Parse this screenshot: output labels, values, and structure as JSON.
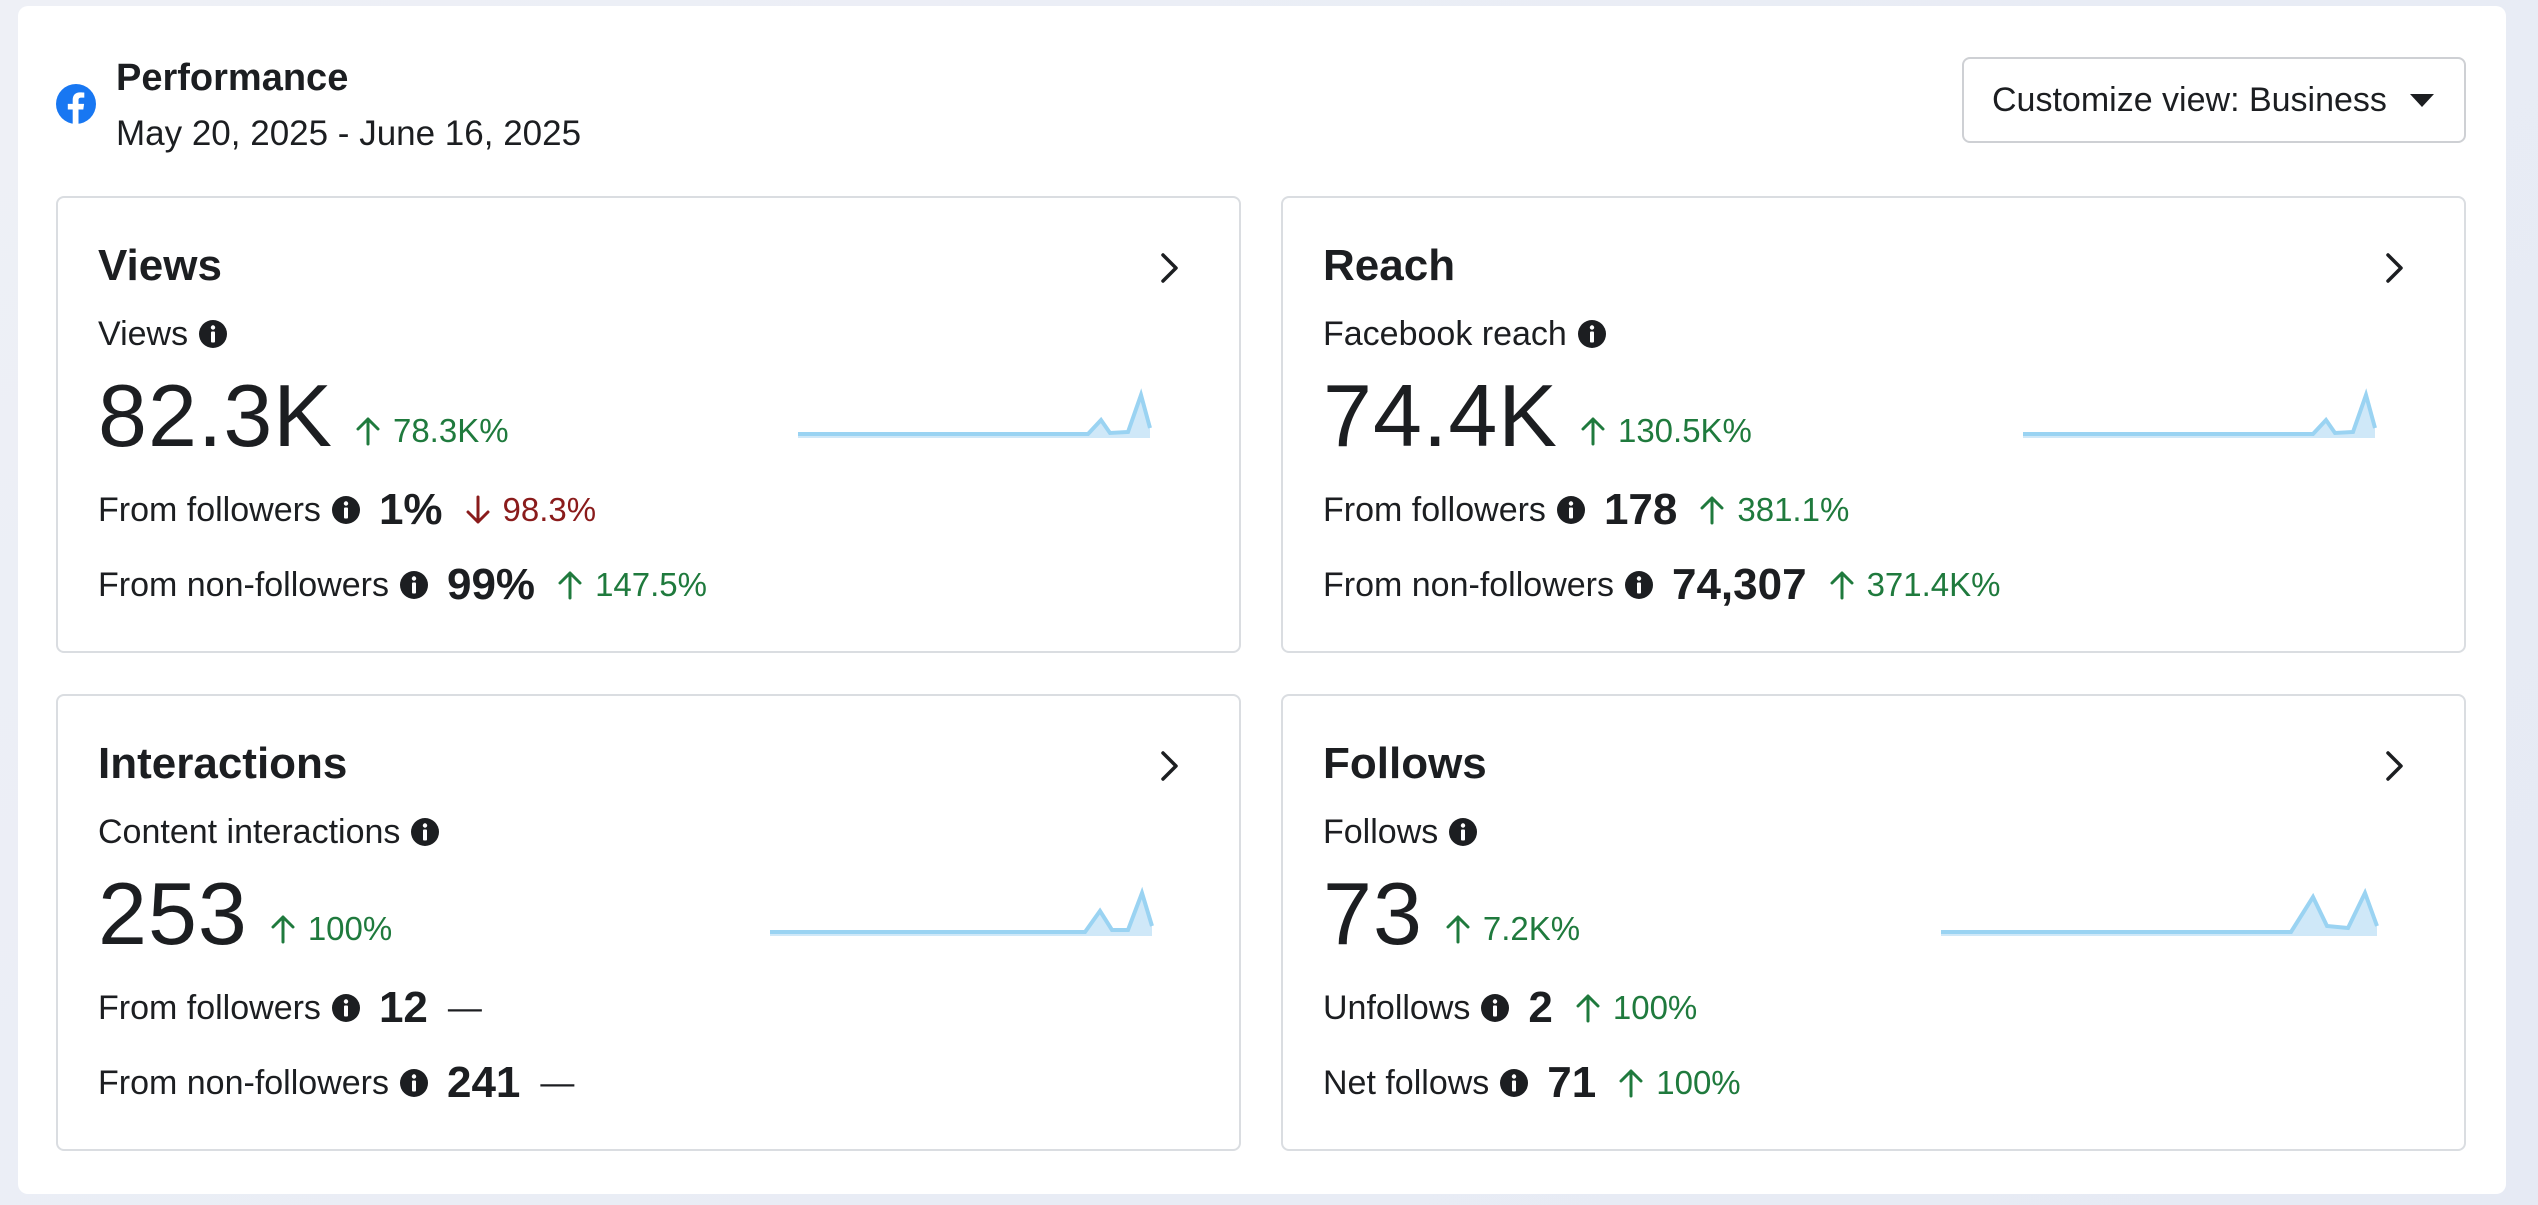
{
  "header": {
    "title": "Performance",
    "date_range": "May 20, 2025 - June 16, 2025",
    "customize_label": "Customize view: Business"
  },
  "colors": {
    "up": "#1f7a3d",
    "down": "#8a1b1b",
    "spark": "#9ad3f2",
    "fb": "#1877f2"
  },
  "cards": [
    {
      "title": "Views",
      "metric_label": "Views",
      "value": "82.3K",
      "delta": "78.3K%",
      "rows": [
        {
          "label": "From followers",
          "value": "1%",
          "delta": "98.3%",
          "direction": "down"
        },
        {
          "label": "From non-followers",
          "value": "99%",
          "delta": "147.5%",
          "direction": "up"
        }
      ]
    },
    {
      "title": "Reach",
      "metric_label": "Facebook reach",
      "value": "74.4K",
      "delta": "130.5K%",
      "rows": [
        {
          "label": "From followers",
          "value": "178",
          "delta": "381.1%",
          "direction": "up"
        },
        {
          "label": "From non-followers",
          "value": "74,307",
          "delta": "371.4K%",
          "direction": "up"
        }
      ]
    },
    {
      "title": "Interactions",
      "metric_label": "Content interactions",
      "value": "253",
      "delta": "100%",
      "rows": [
        {
          "label": "From followers",
          "value": "12",
          "delta": "—",
          "direction": "none"
        },
        {
          "label": "From non-followers",
          "value": "241",
          "delta": "—",
          "direction": "none"
        }
      ]
    },
    {
      "title": "Follows",
      "metric_label": "Follows",
      "value": "73",
      "delta": "7.2K%",
      "rows": [
        {
          "label": "Unfollows",
          "value": "2",
          "delta": "100%",
          "direction": "up"
        },
        {
          "label": "Net follows",
          "value": "71",
          "delta": "100%",
          "direction": "up"
        }
      ]
    }
  ]
}
